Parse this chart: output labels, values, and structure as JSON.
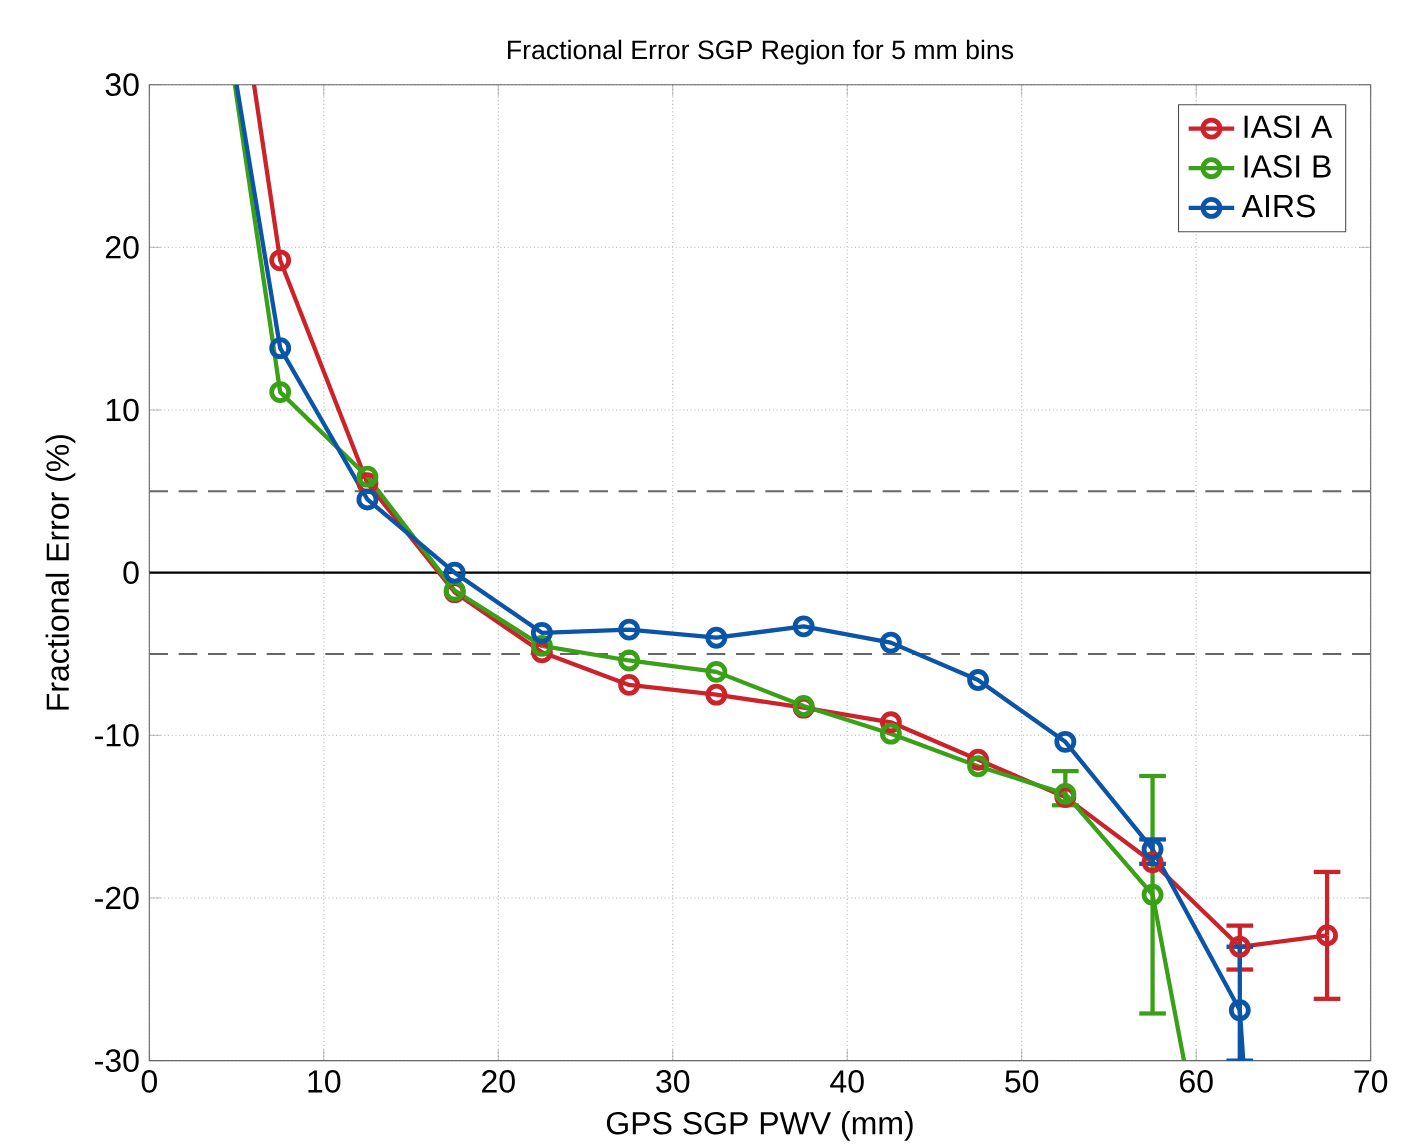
{
  "chart_data": {
    "type": "line",
    "title": "Fractional Error SGP Region for 5 mm bins",
    "xlabel": "GPS SGP PWV (mm)",
    "ylabel": "Fractional Error (%)",
    "xlim": [
      0,
      70
    ],
    "ylim": [
      -30,
      30
    ],
    "xticks": [
      0,
      10,
      20,
      30,
      40,
      50,
      60,
      70
    ],
    "yticks": [
      -30,
      -20,
      -10,
      0,
      10,
      20,
      30
    ],
    "grid": true,
    "legend": "top right",
    "marker": "circle",
    "line_style": "solid",
    "series": [
      {
        "name": "IASI A",
        "color": "#cc2229",
        "x": [
          6.0,
          7.5,
          12.5,
          17.5,
          22.5,
          27.5,
          32.5,
          37.5,
          42.5,
          47.5,
          52.5,
          57.5,
          62.5,
          67.5
        ],
        "values": [
          30,
          19.2,
          5.5,
          -1.2,
          -4.9,
          -6.9,
          -7.5,
          -8.3,
          -9.2,
          -11.5,
          -13.8,
          -17.8,
          -23.0,
          -22.3
        ],
        "errors": [
          null,
          null,
          null,
          null,
          null,
          null,
          null,
          null,
          null,
          null,
          null,
          null,
          [
            -24.4,
            -21.7
          ],
          [
            -26.2,
            -18.4
          ]
        ]
      },
      {
        "name": "IASI B",
        "color": "#3aa018",
        "x": [
          4.9,
          7.5,
          12.5,
          17.5,
          22.5,
          27.5,
          32.5,
          37.5,
          42.5,
          47.5,
          52.5,
          57.5,
          59.3
        ],
        "values": [
          30,
          11.1,
          5.9,
          -1.1,
          -4.5,
          -5.4,
          -6.1,
          -8.2,
          -9.9,
          -11.9,
          -13.6,
          -19.8,
          -30
        ],
        "errors": [
          null,
          null,
          null,
          null,
          null,
          null,
          null,
          null,
          null,
          null,
          [
            -14.3,
            -12.2
          ],
          [
            -27.1,
            -12.5
          ],
          null
        ]
      },
      {
        "name": "AIRS",
        "color": "#0b55a8",
        "x": [
          5.0,
          7.5,
          12.5,
          17.5,
          22.5,
          27.5,
          32.5,
          37.5,
          42.5,
          47.5,
          52.5,
          57.5,
          62.5,
          62.7
        ],
        "values": [
          30,
          13.8,
          4.5,
          0,
          -3.7,
          -3.5,
          -4.0,
          -3.3,
          -4.3,
          -6.6,
          -10.4,
          -17.0,
          -26.9,
          -30
        ],
        "errors": [
          null,
          null,
          null,
          null,
          null,
          null,
          null,
          null,
          null,
          null,
          null,
          [
            -17.9,
            -16.4
          ],
          [
            -30,
            -23.0
          ],
          null
        ]
      }
    ],
    "ref_lines": [
      {
        "axis": "y",
        "value": 5,
        "line_style": "dashed",
        "color": "#666666"
      },
      {
        "axis": "y",
        "value": -5,
        "line_style": "dashed",
        "color": "#666666"
      },
      {
        "axis": "y",
        "value": 0,
        "line_style": "solid",
        "color": "#000000"
      }
    ]
  }
}
